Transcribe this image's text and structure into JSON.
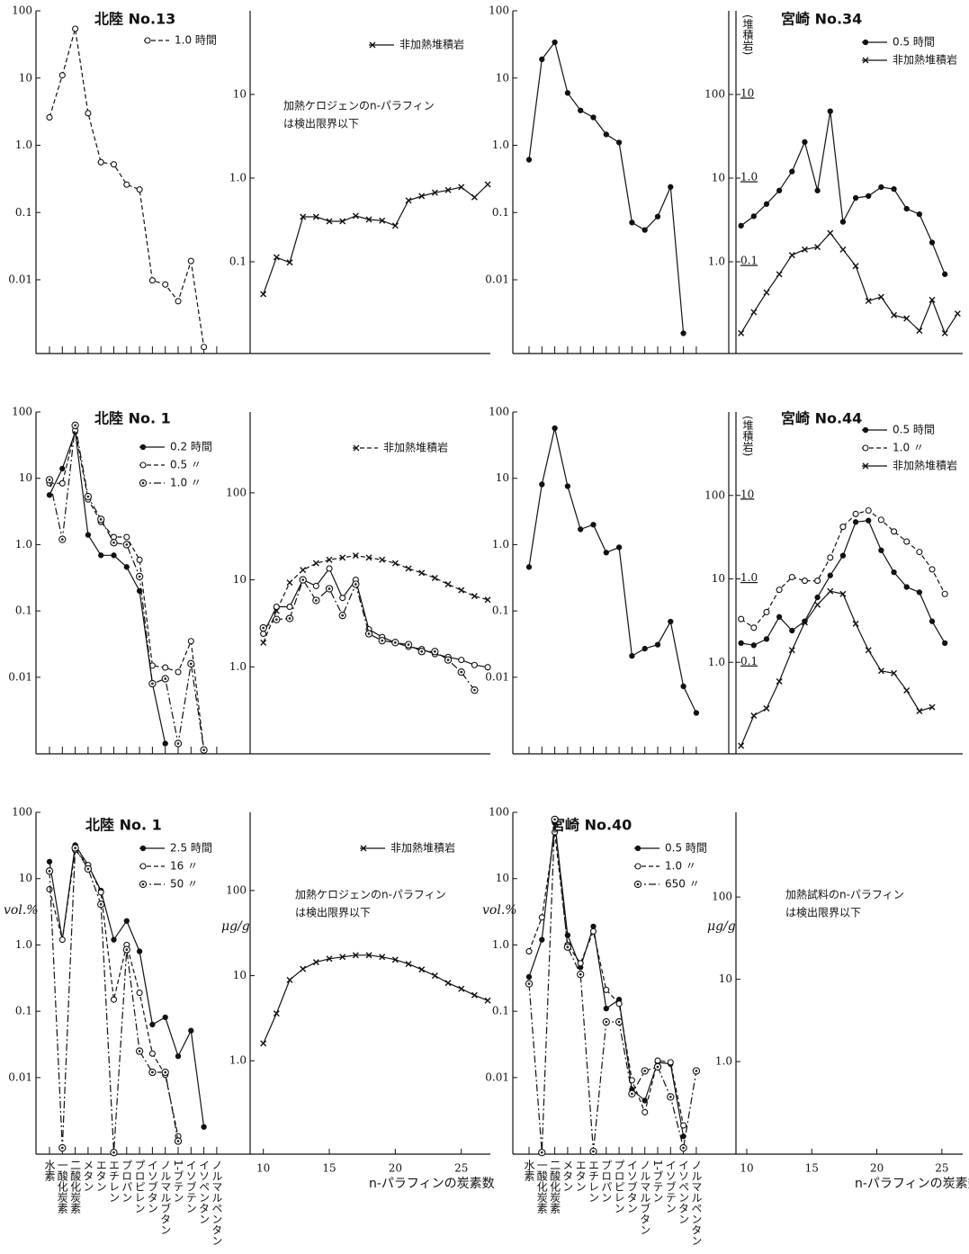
{
  "chart_data": [
    {
      "type": "line",
      "title": "北陸 No.13",
      "log_y": true,
      "categories": [
        null,
        null,
        null,
        null,
        null,
        null,
        null,
        null,
        null,
        null,
        null,
        null,
        null,
        null
      ],
      "ylim": [
        0.0008,
        100
      ],
      "yticks": [
        100,
        10,
        {
          "value": 1,
          "label": "1.0"
        },
        0.1,
        0.01
      ],
      "series": [
        {
          "name": "1.0 時間",
          "color": "#111111",
          "marker": "open",
          "line_style": "dashed",
          "values": [
            2.6,
            11,
            54,
            3,
            0.56,
            0.52,
            0.26,
            0.22,
            0.0098,
            0.0085,
            0.0048,
            0.019,
            0.001,
            null
          ]
        }
      ]
    },
    {
      "type": "line",
      "log_y": true,
      "x": [
        10,
        11,
        12,
        13,
        14,
        15,
        16,
        17,
        18,
        19,
        20,
        21,
        22,
        23,
        24,
        25,
        26,
        27
      ],
      "xlim": [
        9,
        27.2
      ],
      "ylim": [
        0.008,
        100
      ],
      "yticks": [
        10,
        {
          "value": 1,
          "label": "1.0"
        },
        0.1
      ],
      "annotation": [
        "加熱ケロジェンのn-パラフィン",
        "は検出限界以下"
      ],
      "series": [
        {
          "name": "非加熱堆積岩",
          "color": "#111111",
          "marker": "x",
          "line_style": "solid",
          "values": [
            0.041,
            0.113,
            0.098,
            0.345,
            0.345,
            0.305,
            0.305,
            0.353,
            0.32,
            0.31,
            0.27,
            0.54,
            0.61,
            0.67,
            0.72,
            0.78,
            0.59,
            0.84
          ]
        }
      ]
    },
    {
      "type": "line",
      "title": "北陸 No. 1",
      "log_y": true,
      "categories": [
        null,
        null,
        null,
        null,
        null,
        null,
        null,
        null,
        null,
        null,
        null,
        null,
        null,
        null
      ],
      "ylim": [
        0.0007,
        100
      ],
      "yticks": [
        100,
        10,
        {
          "value": 1,
          "label": "1.0"
        },
        0.1,
        0.01
      ],
      "series": [
        {
          "name": "0.2 時間",
          "color": "#111111",
          "marker": "filled",
          "line_style": "solid",
          "values": [
            5.6,
            14,
            50,
            1.4,
            0.69,
            0.69,
            0.46,
            0.2,
            0.008,
            0.001,
            null,
            null,
            null,
            null
          ]
        },
        {
          "name": "0.5 〃",
          "color": "#111111",
          "marker": "open",
          "line_style": "dashed",
          "values": [
            8.4,
            8.4,
            53,
            4.8,
            2.2,
            1.3,
            1.3,
            0.59,
            0.015,
            0.014,
            0.012,
            0.035,
            0.0008,
            null
          ]
        },
        {
          "name": "1.0 〃",
          "color": "#111111",
          "marker": "dot",
          "line_style": "dashdot",
          "values": [
            9.5,
            1.2,
            63,
            5.3,
            2.4,
            1.07,
            1,
            0.33,
            0.008,
            0.0095,
            0.001,
            0.016,
            0.0008,
            null
          ]
        }
      ]
    },
    {
      "type": "line",
      "log_y": true,
      "x": [
        10,
        11,
        12,
        13,
        14,
        15,
        16,
        17,
        18,
        19,
        20,
        21,
        22,
        23,
        24,
        25,
        26,
        27
      ],
      "xlim": [
        9,
        27.2
      ],
      "ylim": [
        0.1,
        850
      ],
      "yticks": [
        100,
        10,
        {
          "value": 1,
          "label": "1.0"
        }
      ],
      "series": [
        {
          "name": "非加熱堆積岩",
          "color": "#111111",
          "marker": "x",
          "line_style": "dashed",
          "values": [
            1.9,
            4.4,
            9.3,
            13,
            15.5,
            17,
            18,
            19,
            18,
            17,
            15.5,
            13.5,
            12,
            10.5,
            8.9,
            7.6,
            6.5,
            5.9
          ]
        },
        {
          "color": "#111111",
          "marker": "open",
          "line_style": "solid",
          "values": [
            2.4,
            4.9,
            4.9,
            10,
            8.5,
            13.5,
            6.2,
            10,
            2.7,
            2.2,
            1.9,
            1.7,
            1.6,
            1.4,
            1.3,
            1.2,
            1.05,
            0.99
          ]
        },
        {
          "color": "#111111",
          "marker": "dot",
          "line_style": "dashdot",
          "values": [
            2.8,
            3.5,
            3.6,
            10,
            5.8,
            7.9,
            3.9,
            8.9,
            2.4,
            2,
            1.9,
            1.8,
            1.5,
            1.5,
            1.2,
            0.87,
            0.54,
            null
          ]
        }
      ]
    },
    {
      "type": "line",
      "log_y": true,
      "categories": [
        null,
        null,
        null,
        null,
        null,
        null,
        null,
        null,
        null,
        null,
        null,
        null,
        null,
        null
      ],
      "ylim": [
        0.0008,
        100
      ],
      "yticks": [
        100,
        10,
        {
          "value": 1,
          "label": "1.0"
        },
        0.1,
        0.01
      ],
      "series": [
        {
          "color": "#111111",
          "marker": "filled",
          "line_style": "solid",
          "values": [
            0.61,
            19,
            34,
            6,
            3.3,
            2.6,
            1.45,
            1.1,
            0.071,
            0.055,
            0.087,
            0.24,
            0.0016,
            null
          ]
        }
      ]
    },
    {
      "type": "line",
      "title": "宮崎 No.34",
      "log_y": true,
      "x": [
        10,
        11,
        12,
        13,
        14,
        15,
        16,
        17,
        18,
        19,
        20,
        21,
        22,
        23,
        24,
        25,
        26,
        27
      ],
      "xlim": [
        9.6,
        27.4
      ],
      "ylim": [
        0.08,
        1000
      ],
      "yticks": [
        100,
        10,
        {
          "value": 1,
          "label": "1.0"
        }
      ],
      "y2lim": [
        0.008,
        100
      ],
      "y2ticks": [
        10,
        {
          "value": 1,
          "label": "1.0"
        },
        0.1
      ],
      "y2label": "(堆積岩)",
      "series": [
        {
          "name": "0.5 時間",
          "color": "#111111",
          "marker": "filled",
          "line_style": "solid",
          "values": [
            2.7,
            3.5,
            4.9,
            7.1,
            12,
            27,
            7.1,
            63,
            3,
            5.8,
            6.1,
            7.8,
            7.4,
            4.3,
            3.7,
            1.7,
            0.71,
            null
          ]
        },
        {
          "name": "非加熱堆積岩",
          "color": "#111111",
          "marker": "x",
          "line_style": "solid",
          "axis": "y2",
          "values": [
            0.014,
            0.025,
            0.043,
            0.071,
            0.12,
            0.14,
            0.15,
            0.22,
            0.14,
            0.089,
            0.034,
            0.038,
            0.023,
            0.021,
            0.015,
            0.035,
            0.014,
            0.024
          ]
        }
      ]
    },
    {
      "type": "line",
      "log_y": true,
      "categories": [
        null,
        null,
        null,
        null,
        null,
        null,
        null,
        null,
        null,
        null,
        null,
        null,
        null,
        null
      ],
      "ylim": [
        0.0007,
        100
      ],
      "yticks": [
        100,
        10,
        {
          "value": 1,
          "label": "1.0"
        },
        0.1,
        0.01
      ],
      "series": [
        {
          "color": "#111111",
          "marker": "filled",
          "line_style": "solid",
          "values": [
            0.46,
            8.1,
            57,
            7.6,
            1.7,
            2,
            0.76,
            0.91,
            0.021,
            0.027,
            0.031,
            0.069,
            0.0073,
            0.0029
          ]
        }
      ]
    },
    {
      "type": "line",
      "title": "宮崎 No.44",
      "log_y": true,
      "x": [
        10,
        11,
        12,
        13,
        14,
        15,
        16,
        17,
        18,
        19,
        20,
        21,
        22,
        23,
        24,
        25,
        26,
        27
      ],
      "xlim": [
        9.6,
        27.4
      ],
      "ylim": [
        0.08,
        1000
      ],
      "yticks": [
        100,
        10,
        {
          "value": 1,
          "label": "1.0"
        }
      ],
      "y2lim": [
        0.008,
        100
      ],
      "y2ticks": [
        10,
        {
          "value": 1,
          "label": "1.0"
        },
        0.1
      ],
      "y2label": "(堆積岩)",
      "series": [
        {
          "name": "0.5 時間",
          "color": "#111111",
          "marker": "filled",
          "line_style": "solid",
          "values": [
            1.7,
            1.6,
            1.9,
            3.5,
            2.4,
            3.1,
            6,
            11,
            19,
            48,
            50,
            22,
            12,
            8,
            6.9,
            3.1,
            1.7,
            null
          ]
        },
        {
          "name": "1.0 〃",
          "color": "#111111",
          "marker": "open",
          "line_style": "dashed",
          "values": [
            3.3,
            2.6,
            4,
            7.4,
            10.5,
            9.5,
            9.5,
            18,
            42,
            60,
            66,
            51,
            37,
            28,
            21,
            13,
            6.6,
            null
          ]
        },
        {
          "name": "非加熱堆積岩",
          "color": "#111111",
          "marker": "x",
          "line_style": "solid",
          "axis": "y2",
          "values": [
            0.01,
            0.023,
            0.028,
            0.059,
            0.14,
            0.3,
            0.49,
            0.71,
            0.66,
            0.29,
            0.14,
            0.079,
            0.074,
            0.046,
            0.026,
            0.029,
            null,
            null
          ]
        }
      ]
    },
    {
      "type": "line",
      "title": "北陸 No. 1",
      "log_y": true,
      "ylabel": "vol.%",
      "categories": [
        "水素",
        "一酸化炭素",
        "二酸化炭素",
        "メタン",
        "エタン",
        "エチレン",
        "プロパン",
        "プロピレン",
        "イソブタン",
        "ノルマルブタン",
        "1-ブテン",
        "イソブテン",
        "イソペンタン",
        "ノルマルペンタン"
      ],
      "ylim": [
        0.0007,
        100
      ],
      "yticks": [
        100,
        10,
        {
          "value": 1,
          "label": "1.0"
        },
        0.1,
        0.01
      ],
      "series": [
        {
          "name": "2.5 時間",
          "color": "#111111",
          "marker": "filled",
          "line_style": "solid",
          "values": [
            18,
            1.2,
            32,
            16,
            6.6,
            1.2,
            2.3,
            0.8,
            0.063,
            0.081,
            0.021,
            0.051,
            0.0018,
            null
          ]
        },
        {
          "name": "16 〃",
          "color": "#111111",
          "marker": "open",
          "line_style": "dashed",
          "values": [
            6.9,
            1.2,
            27,
            16,
            6.2,
            0.15,
            1,
            0.19,
            0.023,
            0.011,
            0.0013,
            null,
            null,
            null
          ]
        },
        {
          "name": "50 〃",
          "color": "#111111",
          "marker": "dot",
          "line_style": "dashdot",
          "values": [
            13,
            0.00087,
            29,
            14,
            4.1,
            0.00074,
            0.85,
            0.025,
            0.012,
            0.012,
            0.0011,
            null,
            null,
            null
          ]
        }
      ]
    },
    {
      "type": "line",
      "log_y": true,
      "x": [
        10,
        11,
        12,
        13,
        14,
        15,
        16,
        17,
        18,
        19,
        20,
        21,
        22,
        23,
        24,
        25,
        26,
        27
      ],
      "xlim": [
        9,
        27.2
      ],
      "xticks": [
        10,
        15,
        20,
        25
      ],
      "xlabel": "n-パラフィンの炭素数",
      "ylabel": "μg/g",
      "ylim": [
        0.08,
        830
      ],
      "yticks": [
        100,
        10,
        {
          "value": 1,
          "label": "1.0"
        }
      ],
      "annotation": [
        "加熱ケロジェンのn-パラフィン",
        "は検出限界以下"
      ],
      "series": [
        {
          "name": "非加熱堆積岩",
          "color": "#111111",
          "marker": "x",
          "line_style": "solid",
          "values": [
            1.6,
            3.6,
            8.9,
            12,
            14.4,
            15.8,
            16.6,
            17.4,
            17.4,
            16.6,
            15.4,
            13.7,
            11.8,
            10,
            8.2,
            7,
            5.9,
            5.1
          ]
        }
      ]
    },
    {
      "type": "line",
      "title": "宮崎 No.40",
      "log_y": true,
      "ylabel": "vol.%",
      "categories": [
        "水素",
        "一酸化炭素",
        "二酸化炭素",
        "メタン",
        "エタン",
        "エチレン",
        "プロパン",
        "プロピレン",
        "イソブタン",
        "ノルマルブタン",
        "1-ブテン",
        "イソブテン",
        "イソペンタン",
        "ノルマルペンタン"
      ],
      "ylim": [
        0.0007,
        100
      ],
      "yticks": [
        100,
        10,
        {
          "value": 1,
          "label": "1.0"
        },
        0.1,
        0.01
      ],
      "series": [
        {
          "name": "0.5 時間",
          "color": "#111111",
          "marker": "filled",
          "line_style": "solid",
          "values": [
            0.33,
            1.2,
            69,
            1.4,
            0.46,
            1.9,
            0.11,
            0.15,
            0.0066,
            0.0045,
            0.017,
            0.016,
            0.0013,
            null
          ]
        },
        {
          "name": "1.0 〃",
          "color": "#111111",
          "marker": "open",
          "line_style": "dashed",
          "values": [
            0.8,
            2.6,
            50,
            1,
            0.53,
            1.6,
            0.21,
            0.13,
            0.0091,
            0.003,
            0.018,
            0.017,
            0.0019,
            null
          ]
        },
        {
          "name": "650 〃",
          "color": "#111111",
          "marker": "dot",
          "line_style": "dashdot",
          "values": [
            0.26,
            0.00074,
            78,
            0.93,
            0.36,
            0.00077,
            0.069,
            0.069,
            0.0057,
            0.0126,
            0.0145,
            0.0051,
            0.00087,
            0.0126
          ]
        }
      ]
    },
    {
      "type": "line",
      "log_y": true,
      "xlim": [
        9.17,
        26.6
      ],
      "xticks": [
        10,
        15,
        20,
        25
      ],
      "xlabel": "n-パラフィンの炭素数",
      "ylabel": "μg/g",
      "ylim": [
        0.075,
        1070
      ],
      "yticks": [
        100,
        10,
        {
          "value": 1,
          "label": "1.0"
        }
      ],
      "annotation": [
        "加熱試料のn-パラフィン",
        "は検出限界以下"
      ]
    }
  ]
}
